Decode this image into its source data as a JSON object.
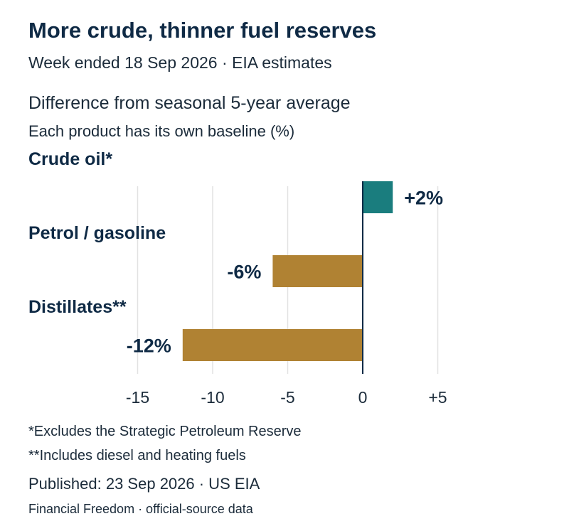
{
  "header": {
    "title": "More crude, thinner fuel reserves",
    "subtitle": "Week ended 18 Sep 2026 · EIA estimates",
    "description": "Difference from seasonal 5-year average",
    "description_sub": "Each product has its own baseline (%)"
  },
  "chart_data": {
    "type": "bar",
    "orientation": "horizontal",
    "categories": [
      "Crude oil*",
      "Petrol / gasoline",
      "Distillates**"
    ],
    "values": [
      2,
      -6,
      -12
    ],
    "value_labels": [
      "+2%",
      "-6%",
      "-12%"
    ],
    "xlim": [
      -15,
      5
    ],
    "xticks": [
      -15,
      -10,
      -5,
      0,
      5
    ],
    "xtick_labels": [
      "-15",
      "-10",
      "-5",
      "0",
      "+5"
    ],
    "grid": "vertical",
    "colors": {
      "positive": "#1a7d7e",
      "negative": "#b08233",
      "zero_line": "#0f2a45",
      "grid": "#e2e2e2"
    }
  },
  "notes": [
    "*Excludes the Strategic Petroleum Reserve",
    "**Includes diesel and heating fuels"
  ],
  "footer": {
    "published": "Published: 23 Sep 2026 · US EIA",
    "source": "Financial Freedom · official-source data"
  }
}
